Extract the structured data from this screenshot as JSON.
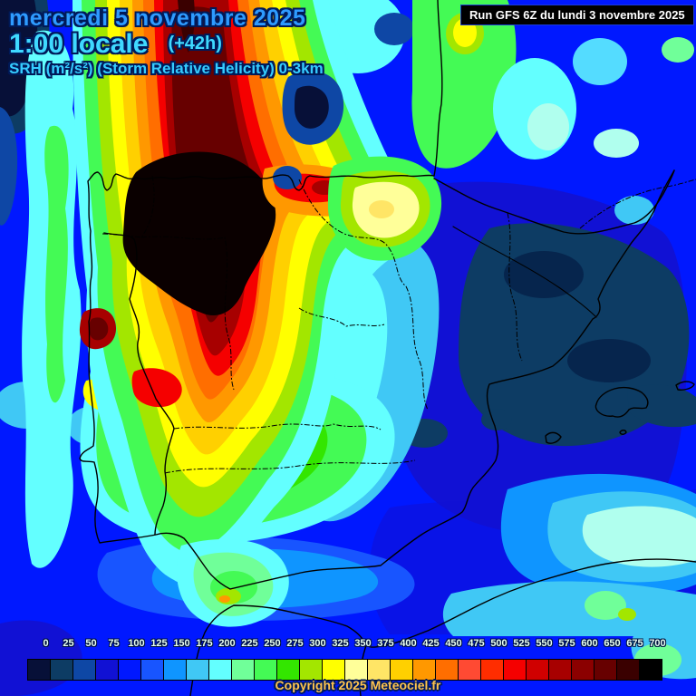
{
  "header": {
    "date_line": "mercredi 5 novembre 2025",
    "time_line": "1:00 locale",
    "forecast_offset": "(+42h)",
    "param_line": "SRH (m²/s²) (Storm Relative Helicity) 0-3km",
    "date_color": "#2e9bff",
    "time_color": "#3fd9ff",
    "param_color": "#35ccff"
  },
  "run_info": {
    "label": "Run GFS 6Z du lundi 3 novembre 2025"
  },
  "legend": {
    "entries": [
      {
        "value": "0",
        "color": "#071038"
      },
      {
        "value": "25",
        "color": "#0d3c64"
      },
      {
        "value": "50",
        "color": "#0e47a5"
      },
      {
        "value": "75",
        "color": "#1111d4"
      },
      {
        "value": "100",
        "color": "#0018ff"
      },
      {
        "value": "125",
        "color": "#1855ff"
      },
      {
        "value": "150",
        "color": "#0f95ff"
      },
      {
        "value": "175",
        "color": "#40c8f5"
      },
      {
        "value": "200",
        "color": "#63ffff"
      },
      {
        "value": "225",
        "color": "#70ff99"
      },
      {
        "value": "250",
        "color": "#44fa55"
      },
      {
        "value": "275",
        "color": "#33e600"
      },
      {
        "value": "300",
        "color": "#a3e600"
      },
      {
        "value": "325",
        "color": "#ffff00"
      },
      {
        "value": "350",
        "color": "#ffff99"
      },
      {
        "value": "375",
        "color": "#ffe566"
      },
      {
        "value": "400",
        "color": "#ffd000"
      },
      {
        "value": "425",
        "color": "#ff9800"
      },
      {
        "value": "450",
        "color": "#ff6e00"
      },
      {
        "value": "475",
        "color": "#ff4a33"
      },
      {
        "value": "500",
        "color": "#ff2d00"
      },
      {
        "value": "525",
        "color": "#f50000"
      },
      {
        "value": "550",
        "color": "#d00000"
      },
      {
        "value": "575",
        "color": "#a70000"
      },
      {
        "value": "600",
        "color": "#8b0000"
      },
      {
        "value": "650",
        "color": "#670000"
      },
      {
        "value": "675",
        "color": "#3a0000"
      },
      {
        "value": "700",
        "color": "#000000"
      }
    ]
  },
  "footer": {
    "copyright": "Copyright 2025 Meteociel.fr",
    "color": "#ffc34d"
  }
}
